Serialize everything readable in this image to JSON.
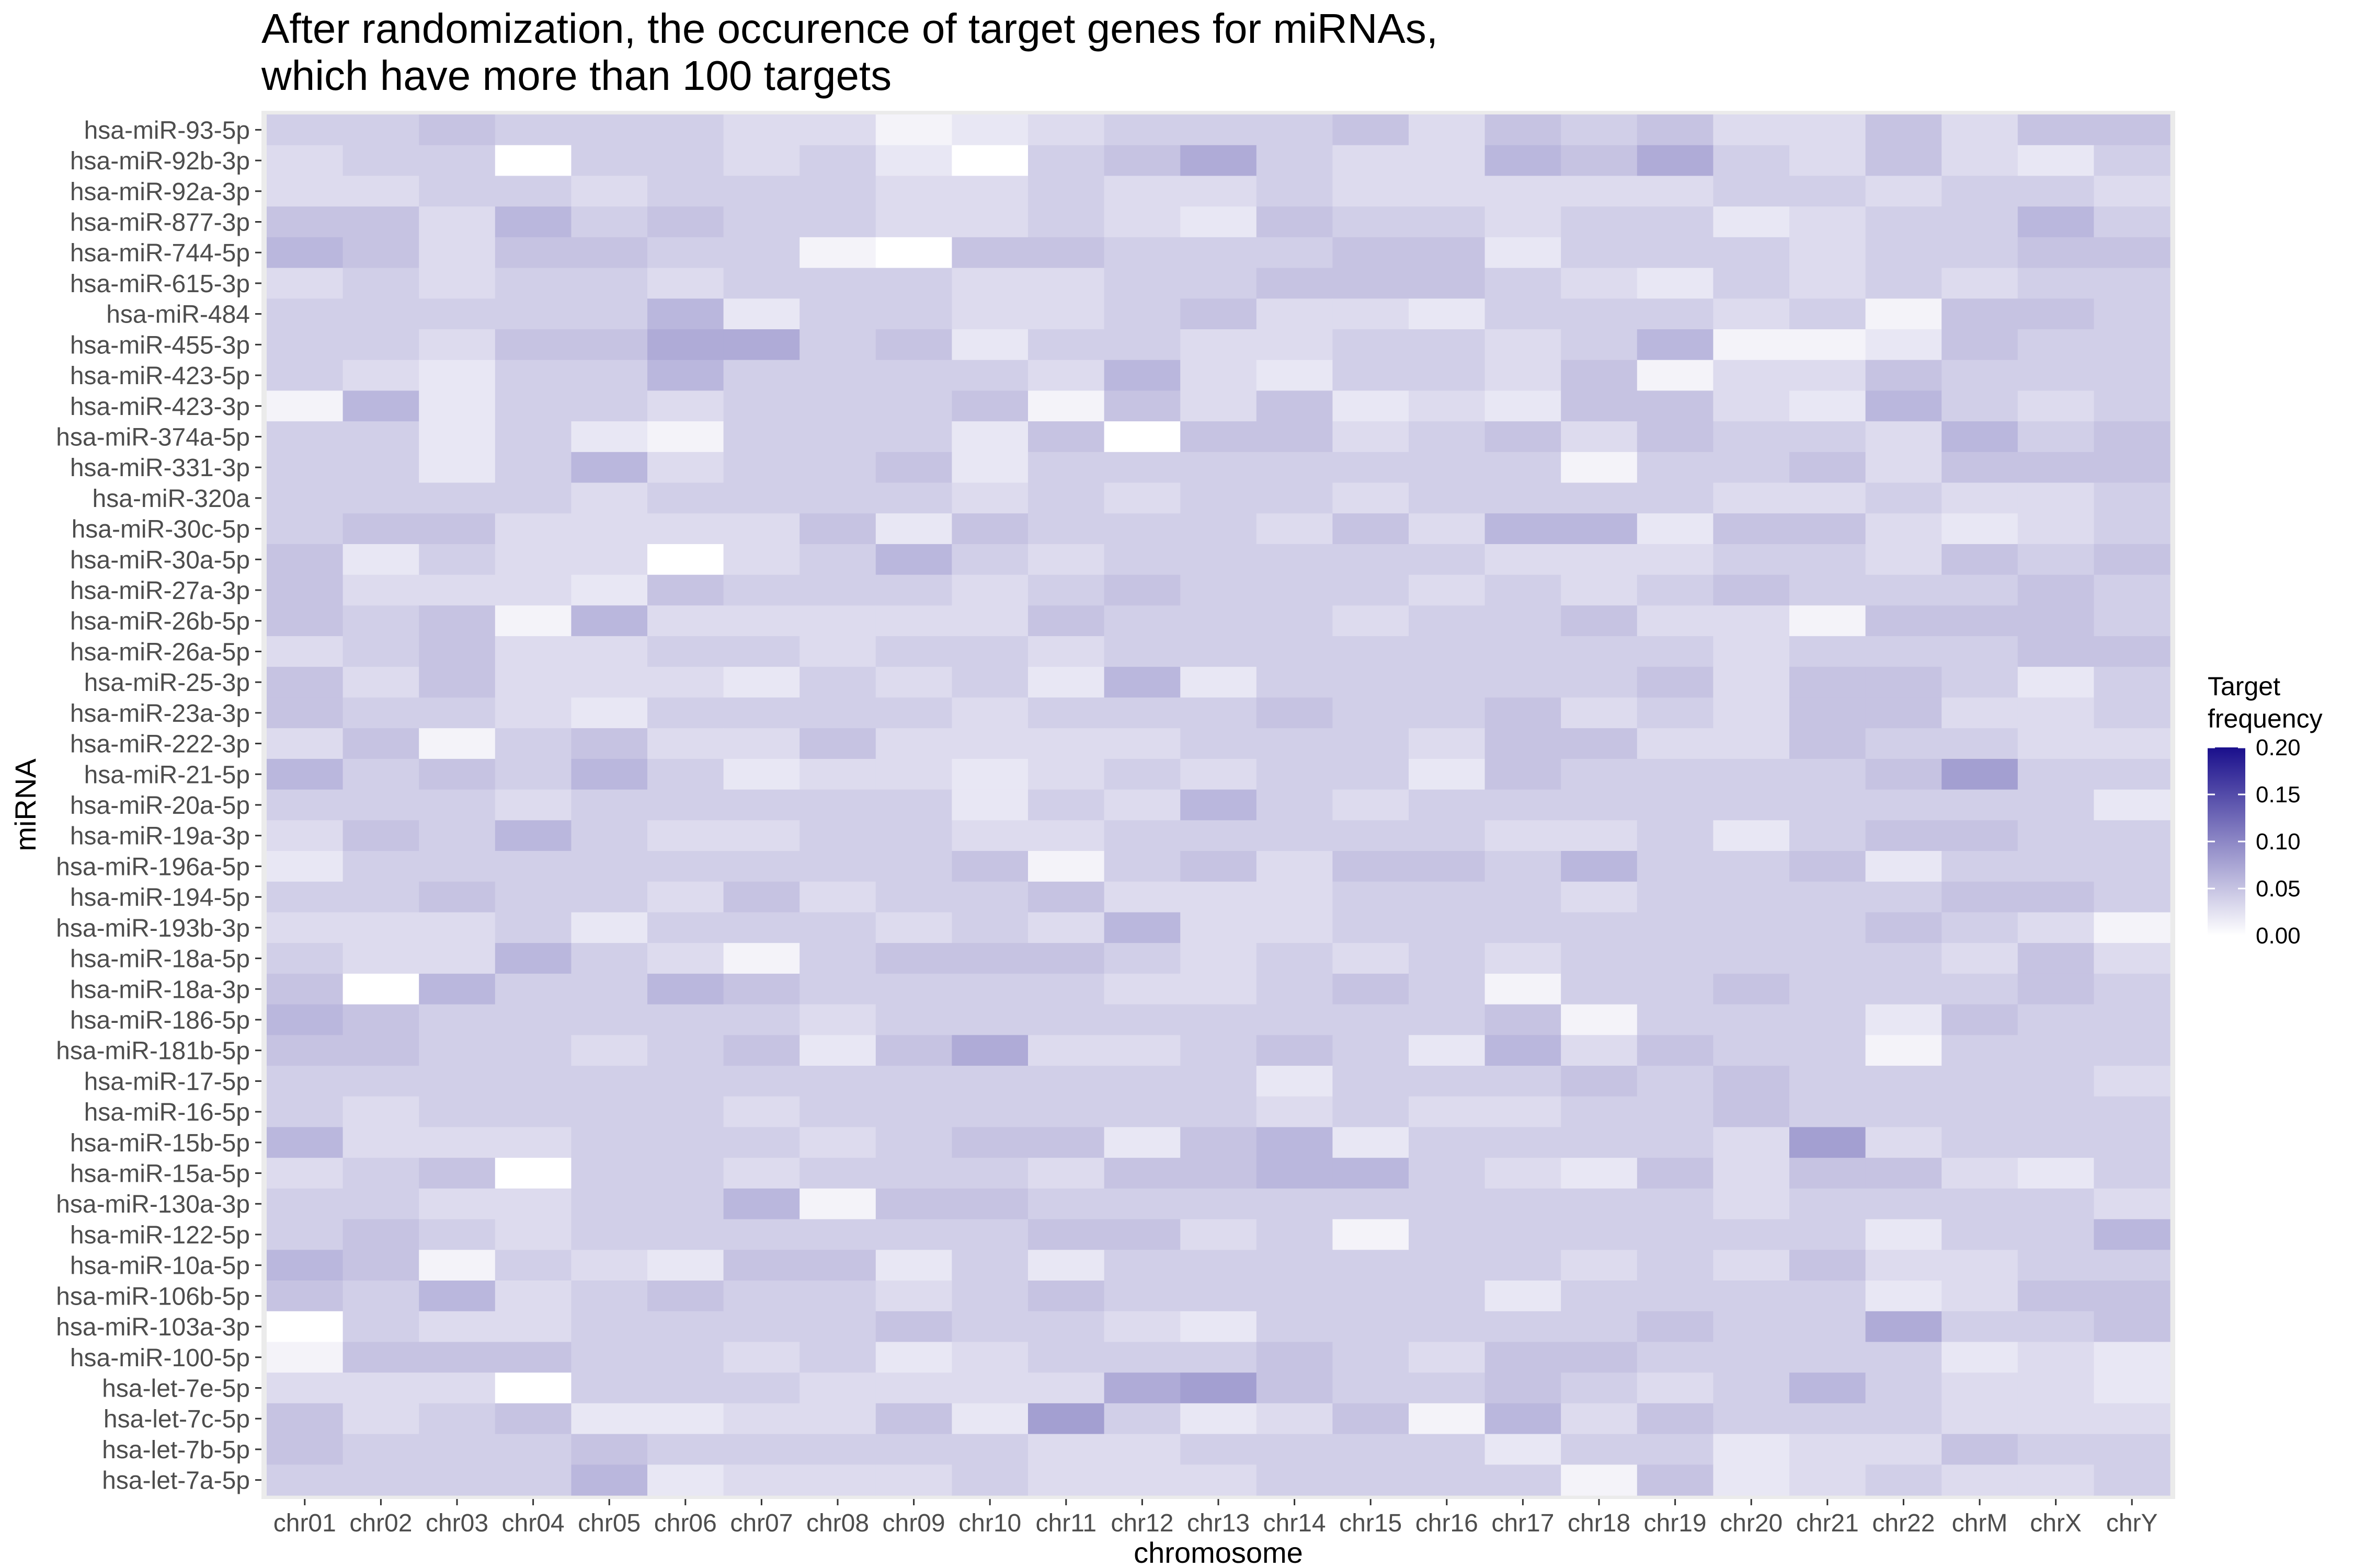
{
  "chart_data": {
    "type": "heatmap",
    "title": [
      "After randomization, the occurence of target genes for miRNAs,",
      "which have more than 100 targets"
    ],
    "xlabel": "chromosome",
    "ylabel": "miRNA",
    "x": [
      "chr01",
      "chr02",
      "chr03",
      "chr04",
      "chr05",
      "chr06",
      "chr07",
      "chr08",
      "chr09",
      "chr10",
      "chr11",
      "chr12",
      "chr13",
      "chr14",
      "chr15",
      "chr16",
      "chr17",
      "chr18",
      "chr19",
      "chr20",
      "chr21",
      "chr22",
      "chrM",
      "chrX",
      "chrY"
    ],
    "y": [
      "hsa-miR-93-5p",
      "hsa-miR-92b-3p",
      "hsa-miR-92a-3p",
      "hsa-miR-877-3p",
      "hsa-miR-744-5p",
      "hsa-miR-615-3p",
      "hsa-miR-484",
      "hsa-miR-455-3p",
      "hsa-miR-423-5p",
      "hsa-miR-423-3p",
      "hsa-miR-374a-5p",
      "hsa-miR-331-3p",
      "hsa-miR-320a",
      "hsa-miR-30c-5p",
      "hsa-miR-30a-5p",
      "hsa-miR-27a-3p",
      "hsa-miR-26b-5p",
      "hsa-miR-26a-5p",
      "hsa-miR-25-3p",
      "hsa-miR-23a-3p",
      "hsa-miR-222-3p",
      "hsa-miR-21-5p",
      "hsa-miR-20a-5p",
      "hsa-miR-19a-3p",
      "hsa-miR-196a-5p",
      "hsa-miR-194-5p",
      "hsa-miR-193b-3p",
      "hsa-miR-18a-5p",
      "hsa-miR-18a-3p",
      "hsa-miR-186-5p",
      "hsa-miR-181b-5p",
      "hsa-miR-17-5p",
      "hsa-miR-16-5p",
      "hsa-miR-15b-5p",
      "hsa-miR-15a-5p",
      "hsa-miR-130a-3p",
      "hsa-miR-122-5p",
      "hsa-miR-10a-5p",
      "hsa-miR-106b-5p",
      "hsa-miR-103a-3p",
      "hsa-miR-100-5p",
      "hsa-let-7e-5p",
      "hsa-let-7c-5p",
      "hsa-let-7b-5p",
      "hsa-let-7a-5p"
    ],
    "values": [
      [
        0.04,
        0.04,
        0.05,
        0.04,
        0.04,
        0.04,
        0.03,
        0.03,
        0.01,
        0.02,
        0.03,
        0.04,
        0.04,
        0.04,
        0.05,
        0.03,
        0.05,
        0.04,
        0.05,
        0.03,
        0.03,
        0.05,
        0.03,
        0.05,
        0.05
      ],
      [
        0.03,
        0.04,
        0.04,
        0.0,
        0.04,
        0.04,
        0.03,
        0.04,
        0.02,
        0.0,
        0.04,
        0.05,
        0.07,
        0.04,
        0.03,
        0.03,
        0.06,
        0.05,
        0.07,
        0.04,
        0.03,
        0.05,
        0.03,
        0.02,
        0.04
      ],
      [
        0.03,
        0.03,
        0.04,
        0.04,
        0.03,
        0.04,
        0.04,
        0.04,
        0.03,
        0.03,
        0.04,
        0.03,
        0.03,
        0.04,
        0.03,
        0.03,
        0.03,
        0.03,
        0.03,
        0.04,
        0.04,
        0.03,
        0.04,
        0.04,
        0.03
      ],
      [
        0.05,
        0.05,
        0.03,
        0.06,
        0.04,
        0.05,
        0.04,
        0.04,
        0.03,
        0.03,
        0.04,
        0.03,
        0.02,
        0.05,
        0.04,
        0.04,
        0.03,
        0.04,
        0.04,
        0.02,
        0.03,
        0.04,
        0.04,
        0.06,
        0.04
      ],
      [
        0.06,
        0.05,
        0.03,
        0.05,
        0.05,
        0.04,
        0.04,
        0.01,
        0.0,
        0.05,
        0.05,
        0.04,
        0.04,
        0.04,
        0.05,
        0.05,
        0.02,
        0.04,
        0.04,
        0.04,
        0.03,
        0.04,
        0.04,
        0.05,
        0.05
      ],
      [
        0.03,
        0.04,
        0.03,
        0.04,
        0.04,
        0.03,
        0.04,
        0.04,
        0.04,
        0.03,
        0.03,
        0.04,
        0.04,
        0.05,
        0.05,
        0.05,
        0.04,
        0.03,
        0.02,
        0.04,
        0.03,
        0.04,
        0.03,
        0.04,
        0.04
      ],
      [
        0.04,
        0.04,
        0.04,
        0.04,
        0.04,
        0.06,
        0.02,
        0.04,
        0.04,
        0.03,
        0.03,
        0.04,
        0.05,
        0.03,
        0.03,
        0.02,
        0.04,
        0.04,
        0.04,
        0.03,
        0.04,
        0.01,
        0.05,
        0.05,
        0.04
      ],
      [
        0.04,
        0.04,
        0.03,
        0.05,
        0.05,
        0.07,
        0.07,
        0.04,
        0.05,
        0.02,
        0.04,
        0.04,
        0.03,
        0.03,
        0.04,
        0.04,
        0.03,
        0.04,
        0.06,
        0.01,
        0.01,
        0.02,
        0.05,
        0.04,
        0.04
      ],
      [
        0.04,
        0.03,
        0.02,
        0.04,
        0.04,
        0.06,
        0.04,
        0.04,
        0.04,
        0.04,
        0.03,
        0.06,
        0.03,
        0.02,
        0.04,
        0.04,
        0.03,
        0.05,
        0.01,
        0.03,
        0.03,
        0.05,
        0.04,
        0.04,
        0.04
      ],
      [
        0.01,
        0.06,
        0.02,
        0.04,
        0.04,
        0.03,
        0.04,
        0.04,
        0.04,
        0.05,
        0.01,
        0.05,
        0.03,
        0.05,
        0.02,
        0.03,
        0.02,
        0.05,
        0.05,
        0.03,
        0.02,
        0.06,
        0.04,
        0.03,
        0.04
      ],
      [
        0.04,
        0.04,
        0.02,
        0.04,
        0.02,
        0.01,
        0.04,
        0.04,
        0.04,
        0.02,
        0.05,
        0.0,
        0.05,
        0.05,
        0.03,
        0.04,
        0.05,
        0.03,
        0.05,
        0.04,
        0.04,
        0.03,
        0.06,
        0.04,
        0.05
      ],
      [
        0.04,
        0.04,
        0.02,
        0.04,
        0.06,
        0.03,
        0.04,
        0.04,
        0.05,
        0.02,
        0.04,
        0.04,
        0.04,
        0.04,
        0.04,
        0.04,
        0.04,
        0.01,
        0.04,
        0.04,
        0.05,
        0.03,
        0.05,
        0.05,
        0.05
      ],
      [
        0.04,
        0.04,
        0.04,
        0.04,
        0.03,
        0.04,
        0.04,
        0.04,
        0.04,
        0.03,
        0.04,
        0.03,
        0.04,
        0.04,
        0.03,
        0.04,
        0.04,
        0.04,
        0.04,
        0.03,
        0.03,
        0.04,
        0.03,
        0.03,
        0.04
      ],
      [
        0.04,
        0.05,
        0.05,
        0.03,
        0.03,
        0.03,
        0.03,
        0.05,
        0.02,
        0.05,
        0.04,
        0.04,
        0.04,
        0.03,
        0.05,
        0.03,
        0.06,
        0.06,
        0.02,
        0.05,
        0.05,
        0.03,
        0.02,
        0.03,
        0.04
      ],
      [
        0.05,
        0.02,
        0.04,
        0.03,
        0.03,
        0.0,
        0.03,
        0.04,
        0.06,
        0.04,
        0.03,
        0.04,
        0.04,
        0.04,
        0.04,
        0.04,
        0.03,
        0.03,
        0.03,
        0.04,
        0.04,
        0.03,
        0.05,
        0.04,
        0.05
      ],
      [
        0.05,
        0.03,
        0.03,
        0.03,
        0.02,
        0.05,
        0.04,
        0.04,
        0.04,
        0.03,
        0.04,
        0.05,
        0.04,
        0.04,
        0.04,
        0.03,
        0.04,
        0.03,
        0.04,
        0.05,
        0.04,
        0.04,
        0.04,
        0.05,
        0.04
      ],
      [
        0.05,
        0.04,
        0.05,
        0.01,
        0.06,
        0.03,
        0.03,
        0.03,
        0.03,
        0.03,
        0.05,
        0.04,
        0.04,
        0.04,
        0.03,
        0.04,
        0.04,
        0.05,
        0.03,
        0.03,
        0.01,
        0.05,
        0.05,
        0.05,
        0.04
      ],
      [
        0.03,
        0.04,
        0.05,
        0.03,
        0.03,
        0.04,
        0.04,
        0.03,
        0.04,
        0.04,
        0.03,
        0.04,
        0.04,
        0.04,
        0.04,
        0.04,
        0.04,
        0.04,
        0.04,
        0.03,
        0.04,
        0.04,
        0.04,
        0.05,
        0.05
      ],
      [
        0.05,
        0.03,
        0.05,
        0.03,
        0.03,
        0.03,
        0.02,
        0.04,
        0.03,
        0.04,
        0.02,
        0.06,
        0.02,
        0.04,
        0.04,
        0.04,
        0.04,
        0.04,
        0.05,
        0.03,
        0.05,
        0.05,
        0.04,
        0.02,
        0.04
      ],
      [
        0.05,
        0.04,
        0.04,
        0.03,
        0.02,
        0.04,
        0.04,
        0.04,
        0.04,
        0.03,
        0.04,
        0.04,
        0.04,
        0.05,
        0.04,
        0.04,
        0.05,
        0.03,
        0.04,
        0.03,
        0.05,
        0.05,
        0.03,
        0.03,
        0.04
      ],
      [
        0.03,
        0.05,
        0.01,
        0.04,
        0.05,
        0.03,
        0.03,
        0.05,
        0.03,
        0.03,
        0.03,
        0.03,
        0.04,
        0.04,
        0.04,
        0.03,
        0.05,
        0.05,
        0.03,
        0.03,
        0.05,
        0.04,
        0.04,
        0.03,
        0.03
      ],
      [
        0.06,
        0.04,
        0.05,
        0.04,
        0.06,
        0.04,
        0.02,
        0.03,
        0.03,
        0.02,
        0.03,
        0.04,
        0.03,
        0.04,
        0.04,
        0.02,
        0.05,
        0.04,
        0.04,
        0.04,
        0.04,
        0.05,
        0.08,
        0.04,
        0.04
      ],
      [
        0.04,
        0.04,
        0.04,
        0.03,
        0.04,
        0.04,
        0.04,
        0.04,
        0.04,
        0.02,
        0.04,
        0.03,
        0.06,
        0.04,
        0.03,
        0.04,
        0.04,
        0.04,
        0.04,
        0.04,
        0.04,
        0.04,
        0.04,
        0.04,
        0.02
      ],
      [
        0.03,
        0.05,
        0.04,
        0.06,
        0.04,
        0.03,
        0.03,
        0.04,
        0.04,
        0.03,
        0.03,
        0.04,
        0.04,
        0.04,
        0.04,
        0.04,
        0.03,
        0.03,
        0.04,
        0.02,
        0.04,
        0.05,
        0.05,
        0.04,
        0.04
      ],
      [
        0.02,
        0.04,
        0.04,
        0.04,
        0.04,
        0.04,
        0.04,
        0.04,
        0.04,
        0.05,
        0.01,
        0.04,
        0.05,
        0.03,
        0.05,
        0.05,
        0.04,
        0.06,
        0.04,
        0.04,
        0.05,
        0.02,
        0.04,
        0.04,
        0.04
      ],
      [
        0.04,
        0.04,
        0.05,
        0.04,
        0.04,
        0.03,
        0.05,
        0.03,
        0.04,
        0.04,
        0.05,
        0.03,
        0.03,
        0.03,
        0.04,
        0.04,
        0.04,
        0.03,
        0.04,
        0.04,
        0.04,
        0.04,
        0.05,
        0.05,
        0.04
      ],
      [
        0.03,
        0.03,
        0.03,
        0.04,
        0.02,
        0.04,
        0.04,
        0.04,
        0.03,
        0.04,
        0.03,
        0.06,
        0.03,
        0.03,
        0.04,
        0.04,
        0.04,
        0.04,
        0.04,
        0.04,
        0.04,
        0.05,
        0.04,
        0.03,
        0.01
      ],
      [
        0.04,
        0.03,
        0.03,
        0.06,
        0.04,
        0.03,
        0.01,
        0.04,
        0.05,
        0.05,
        0.05,
        0.04,
        0.03,
        0.04,
        0.03,
        0.04,
        0.03,
        0.04,
        0.04,
        0.04,
        0.04,
        0.04,
        0.03,
        0.05,
        0.03
      ],
      [
        0.05,
        0.0,
        0.06,
        0.04,
        0.04,
        0.06,
        0.05,
        0.04,
        0.04,
        0.04,
        0.04,
        0.03,
        0.03,
        0.04,
        0.05,
        0.04,
        0.01,
        0.04,
        0.04,
        0.05,
        0.04,
        0.04,
        0.04,
        0.05,
        0.04
      ],
      [
        0.06,
        0.05,
        0.04,
        0.04,
        0.04,
        0.04,
        0.04,
        0.03,
        0.04,
        0.04,
        0.04,
        0.04,
        0.04,
        0.04,
        0.04,
        0.04,
        0.05,
        0.01,
        0.04,
        0.04,
        0.04,
        0.02,
        0.05,
        0.04,
        0.04
      ],
      [
        0.05,
        0.05,
        0.04,
        0.04,
        0.03,
        0.04,
        0.05,
        0.02,
        0.05,
        0.07,
        0.03,
        0.03,
        0.04,
        0.05,
        0.04,
        0.02,
        0.06,
        0.03,
        0.05,
        0.04,
        0.04,
        0.01,
        0.04,
        0.04,
        0.04
      ],
      [
        0.04,
        0.04,
        0.04,
        0.04,
        0.04,
        0.04,
        0.04,
        0.04,
        0.04,
        0.04,
        0.04,
        0.04,
        0.04,
        0.02,
        0.04,
        0.04,
        0.04,
        0.05,
        0.04,
        0.05,
        0.04,
        0.04,
        0.04,
        0.04,
        0.03
      ],
      [
        0.04,
        0.03,
        0.04,
        0.04,
        0.04,
        0.04,
        0.03,
        0.04,
        0.04,
        0.04,
        0.04,
        0.04,
        0.04,
        0.03,
        0.04,
        0.03,
        0.03,
        0.04,
        0.04,
        0.05,
        0.04,
        0.04,
        0.04,
        0.04,
        0.04
      ],
      [
        0.06,
        0.03,
        0.03,
        0.03,
        0.04,
        0.04,
        0.04,
        0.03,
        0.04,
        0.05,
        0.05,
        0.02,
        0.05,
        0.06,
        0.02,
        0.04,
        0.04,
        0.04,
        0.04,
        0.03,
        0.08,
        0.03,
        0.04,
        0.04,
        0.04
      ],
      [
        0.03,
        0.04,
        0.05,
        0.0,
        0.04,
        0.04,
        0.03,
        0.04,
        0.04,
        0.04,
        0.03,
        0.05,
        0.05,
        0.06,
        0.06,
        0.04,
        0.03,
        0.02,
        0.05,
        0.03,
        0.05,
        0.05,
        0.03,
        0.02,
        0.04
      ],
      [
        0.04,
        0.04,
        0.03,
        0.03,
        0.04,
        0.04,
        0.06,
        0.01,
        0.05,
        0.05,
        0.04,
        0.04,
        0.04,
        0.04,
        0.04,
        0.04,
        0.04,
        0.04,
        0.04,
        0.03,
        0.04,
        0.04,
        0.04,
        0.04,
        0.03
      ],
      [
        0.04,
        0.05,
        0.04,
        0.03,
        0.04,
        0.04,
        0.04,
        0.04,
        0.04,
        0.04,
        0.05,
        0.05,
        0.03,
        0.04,
        0.01,
        0.04,
        0.04,
        0.04,
        0.04,
        0.04,
        0.04,
        0.02,
        0.04,
        0.04,
        0.06
      ],
      [
        0.06,
        0.05,
        0.01,
        0.04,
        0.03,
        0.02,
        0.05,
        0.05,
        0.02,
        0.04,
        0.02,
        0.04,
        0.04,
        0.04,
        0.04,
        0.04,
        0.04,
        0.03,
        0.04,
        0.03,
        0.05,
        0.03,
        0.03,
        0.04,
        0.04
      ],
      [
        0.05,
        0.04,
        0.06,
        0.03,
        0.04,
        0.05,
        0.04,
        0.04,
        0.03,
        0.04,
        0.05,
        0.04,
        0.04,
        0.04,
        0.04,
        0.04,
        0.02,
        0.04,
        0.04,
        0.04,
        0.04,
        0.02,
        0.03,
        0.05,
        0.05
      ],
      [
        0.0,
        0.04,
        0.03,
        0.03,
        0.04,
        0.04,
        0.04,
        0.04,
        0.05,
        0.04,
        0.04,
        0.03,
        0.02,
        0.04,
        0.04,
        0.04,
        0.04,
        0.04,
        0.05,
        0.04,
        0.04,
        0.07,
        0.04,
        0.04,
        0.05
      ],
      [
        0.01,
        0.05,
        0.05,
        0.05,
        0.04,
        0.04,
        0.03,
        0.04,
        0.02,
        0.03,
        0.04,
        0.04,
        0.04,
        0.05,
        0.04,
        0.03,
        0.05,
        0.05,
        0.04,
        0.04,
        0.04,
        0.04,
        0.02,
        0.03,
        0.02
      ],
      [
        0.03,
        0.03,
        0.03,
        0.0,
        0.04,
        0.04,
        0.04,
        0.03,
        0.03,
        0.03,
        0.03,
        0.07,
        0.08,
        0.05,
        0.04,
        0.04,
        0.05,
        0.04,
        0.03,
        0.04,
        0.06,
        0.04,
        0.03,
        0.03,
        0.02
      ],
      [
        0.05,
        0.03,
        0.04,
        0.05,
        0.02,
        0.02,
        0.03,
        0.03,
        0.05,
        0.02,
        0.08,
        0.04,
        0.02,
        0.03,
        0.05,
        0.01,
        0.06,
        0.03,
        0.05,
        0.04,
        0.04,
        0.04,
        0.03,
        0.03,
        0.03
      ],
      [
        0.05,
        0.04,
        0.04,
        0.04,
        0.05,
        0.04,
        0.04,
        0.04,
        0.04,
        0.04,
        0.03,
        0.03,
        0.04,
        0.04,
        0.04,
        0.04,
        0.02,
        0.04,
        0.04,
        0.02,
        0.03,
        0.03,
        0.05,
        0.04,
        0.04
      ],
      [
        0.04,
        0.04,
        0.04,
        0.04,
        0.06,
        0.02,
        0.03,
        0.03,
        0.03,
        0.04,
        0.03,
        0.03,
        0.03,
        0.04,
        0.04,
        0.04,
        0.04,
        0.01,
        0.05,
        0.02,
        0.03,
        0.04,
        0.03,
        0.03,
        0.04
      ]
    ],
    "colorbar": {
      "title": [
        "Target",
        "frequency"
      ],
      "min": 0.0,
      "max": 0.2,
      "ticks": [
        "0.20",
        "0.15",
        "0.10",
        "0.05",
        "0.00"
      ],
      "low_color": "#ffffff",
      "high_color": "#1a0f8c"
    },
    "panel_background": "#ebebeb",
    "grid": true,
    "legend_position": "right"
  }
}
